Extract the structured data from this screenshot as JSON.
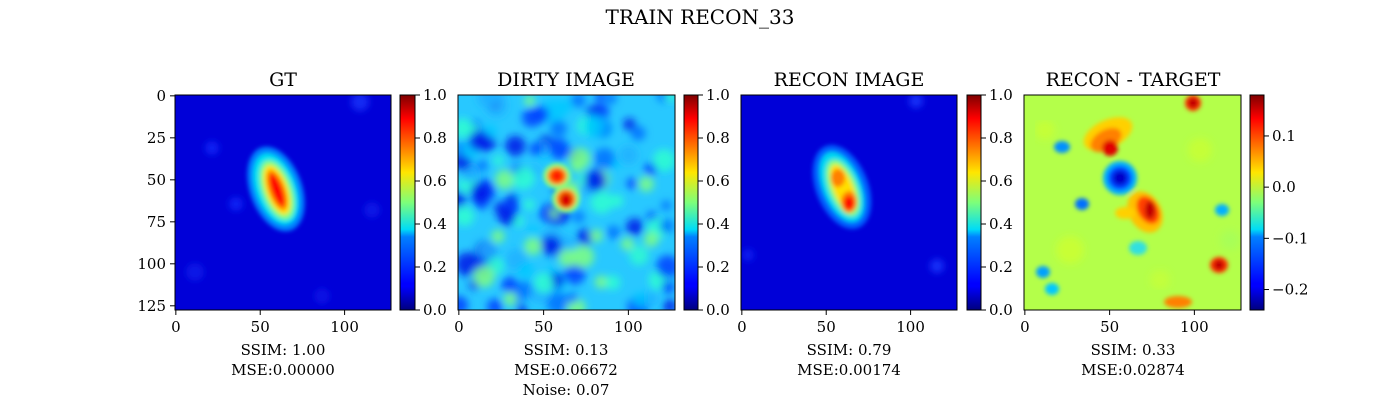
{
  "suptitle": "TRAIN RECON_33",
  "chart_data": [
    {
      "type": "heatmap",
      "title": "GT",
      "x_ticks": [
        0,
        50,
        100
      ],
      "y_ticks": [
        0,
        25,
        50,
        75,
        100,
        125
      ],
      "image_size": 128,
      "colormap": "jet",
      "colorbar_range": [
        0.0,
        1.0
      ],
      "colorbar_ticks": [
        "0.0",
        "0.2",
        "0.4",
        "0.6",
        "0.8",
        "1.0"
      ],
      "metrics": [
        "SSIM: 1.00",
        "MSE:0.00000"
      ]
    },
    {
      "type": "heatmap",
      "title": "DIRTY IMAGE",
      "x_ticks": [
        0,
        50,
        100
      ],
      "image_size": 128,
      "colormap": "jet",
      "colorbar_range": [
        0.0,
        1.0
      ],
      "colorbar_ticks": [
        "0.0",
        "0.2",
        "0.4",
        "0.6",
        "0.8",
        "1.0"
      ],
      "metrics": [
        "SSIM: 0.13",
        "MSE:0.06672",
        "Noise: 0.07"
      ]
    },
    {
      "type": "heatmap",
      "title": "RECON IMAGE",
      "x_ticks": [
        0,
        50,
        100
      ],
      "image_size": 128,
      "colormap": "jet",
      "colorbar_range": [
        0.0,
        1.0
      ],
      "colorbar_ticks": [
        "0.0",
        "0.2",
        "0.4",
        "0.6",
        "0.8",
        "1.0"
      ],
      "metrics": [
        "SSIM: 0.79",
        "MSE:0.00174"
      ]
    },
    {
      "type": "heatmap",
      "title": "RECON - TARGET",
      "x_ticks": [
        0,
        50,
        100
      ],
      "image_size": 128,
      "colormap": "jet",
      "colorbar_range": [
        -0.24,
        0.18
      ],
      "colorbar_ticks": [
        "−0.2",
        "−0.1",
        "0.0",
        "0.1"
      ],
      "colorbar_tick_values": [
        -0.2,
        -0.1,
        0.0,
        0.1
      ],
      "metrics": [
        "SSIM: 0.33",
        "MSE:0.02874"
      ]
    }
  ]
}
